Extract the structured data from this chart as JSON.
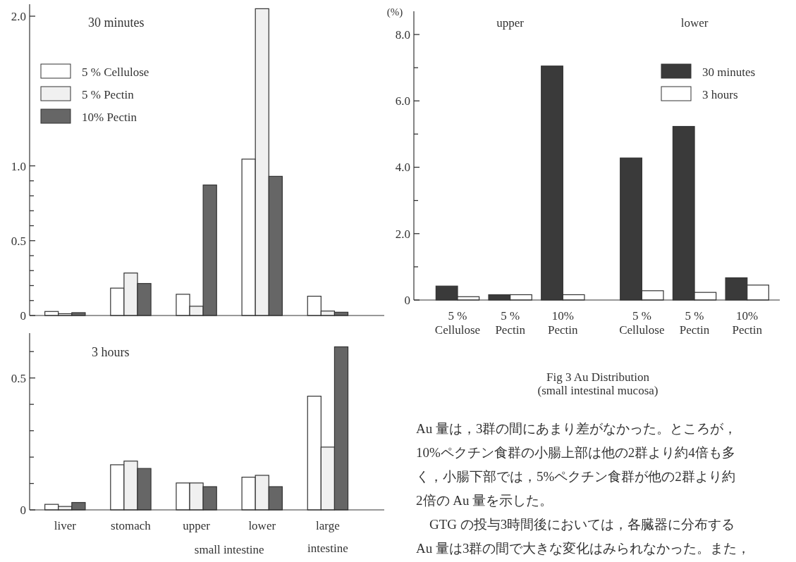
{
  "chart_data": [
    {
      "type": "bar",
      "title": "30 minutes",
      "categories": [
        null,
        null,
        null,
        null,
        null
      ],
      "series": [
        {
          "name": "5 % Cellulose",
          "color": "#ffffff",
          "values": [
            0.027,
            0.183,
            0.142,
            1.045,
            0.129
          ]
        },
        {
          "name": "5 % Pectin",
          "color": "#f0f0f0",
          "values": [
            0.012,
            0.284,
            0.062,
            2.05,
            0.03
          ]
        },
        {
          "name": "10% Pectin",
          "color": "#666666",
          "values": [
            0.019,
            0.214,
            0.872,
            0.93,
            0.022
          ]
        }
      ],
      "ylim": [
        0,
        2.08
      ],
      "yticks": [
        {
          "value": 0,
          "label": "0"
        },
        {
          "value": 0.1,
          "label": null
        },
        {
          "value": 0.2,
          "label": null
        },
        {
          "value": 0.3,
          "label": null
        },
        {
          "value": 0.4,
          "label": null
        },
        0.5,
        {
          "value": 0.6,
          "label": null
        },
        {
          "value": 0.7,
          "label": null
        },
        {
          "value": 0.8,
          "label": null
        },
        {
          "value": 0.9,
          "label": null
        },
        {
          "value": 1,
          "label": "1.0"
        },
        {
          "value": 2,
          "label": "2.0"
        }
      ],
      "legend": "top left"
    },
    {
      "type": "bar",
      "title": "3 hours",
      "categories": [
        "liver",
        "stomach",
        "upper",
        "lower",
        "large\nintestine"
      ],
      "series": [
        {
          "color": "#ffffff",
          "values": [
            0.021,
            0.171,
            0.102,
            0.124,
            0.431
          ]
        },
        {
          "color": "#f0f0f0",
          "values": [
            0.013,
            0.185,
            0.102,
            0.131,
            0.238
          ]
        },
        {
          "color": "#666666",
          "values": [
            0.028,
            0.157,
            0.088,
            0.088,
            0.618
          ]
        }
      ],
      "ylim": [
        0,
        0.67
      ],
      "yticks": [
        {
          "value": 0,
          "label": "0"
        },
        {
          "value": 0.1,
          "label": null
        },
        {
          "value": 0.2,
          "label": null
        },
        {
          "value": 0.3,
          "label": null
        },
        {
          "value": 0.4,
          "label": null
        },
        0.5,
        {
          "value": 0.6,
          "label": null
        }
      ],
      "annotations": [
        "small intestine"
      ]
    },
    {
      "type": "bar",
      "title": "Fig 3   Au Distribution",
      "subtitle": "(small intestinal mucosa)",
      "ylabel": "(%)",
      "categories": [
        "5 %\nCellulose",
        "5 %\nPectin",
        "10%\nPectin",
        null,
        "5 %\nCellulose",
        "5 %\nPectin",
        "10%\nPectin"
      ],
      "series": [
        {
          "name": "30 minutes",
          "color": "#3a3a3a",
          "values": [
            0.42,
            0.16,
            7.05,
            null,
            4.28,
            5.23,
            0.67
          ]
        },
        {
          "name": "3 hours",
          "color": "#ffffff",
          "values": [
            0.1,
            0.16,
            0.16,
            null,
            0.28,
            0.23,
            0.45
          ]
        }
      ],
      "ylim": [
        0,
        8.7
      ],
      "yticks": [
        {
          "value": 0,
          "label": "0"
        },
        {
          "value": 1,
          "label": null
        },
        {
          "value": 2,
          "label": "2.0"
        },
        {
          "value": 3,
          "label": null
        },
        {
          "value": 4,
          "label": "4.0"
        },
        {
          "value": 5,
          "label": null
        },
        {
          "value": 6,
          "label": "6.0"
        },
        {
          "value": 7,
          "label": null
        },
        {
          "value": 8,
          "label": "8.0"
        }
      ],
      "legend": "top right",
      "annotations": [
        "upper",
        "lower"
      ]
    },
    {
      "type": "other",
      "annotations": [
        "Au 量は，3群の間にあまり差がなかった。ところが，",
        "10%ペクチン食群の小腸上部は他の2群より約4倍も多",
        "く，小腸下部では，5%ペクチン食群が他の2群より約",
        "2倍の Au 量を示した。",
        "　GTG の投与3時間後においては，各臓器に分布する",
        "Au 量は3群の間で大きな変化はみられなかった。また，"
      ]
    }
  ]
}
